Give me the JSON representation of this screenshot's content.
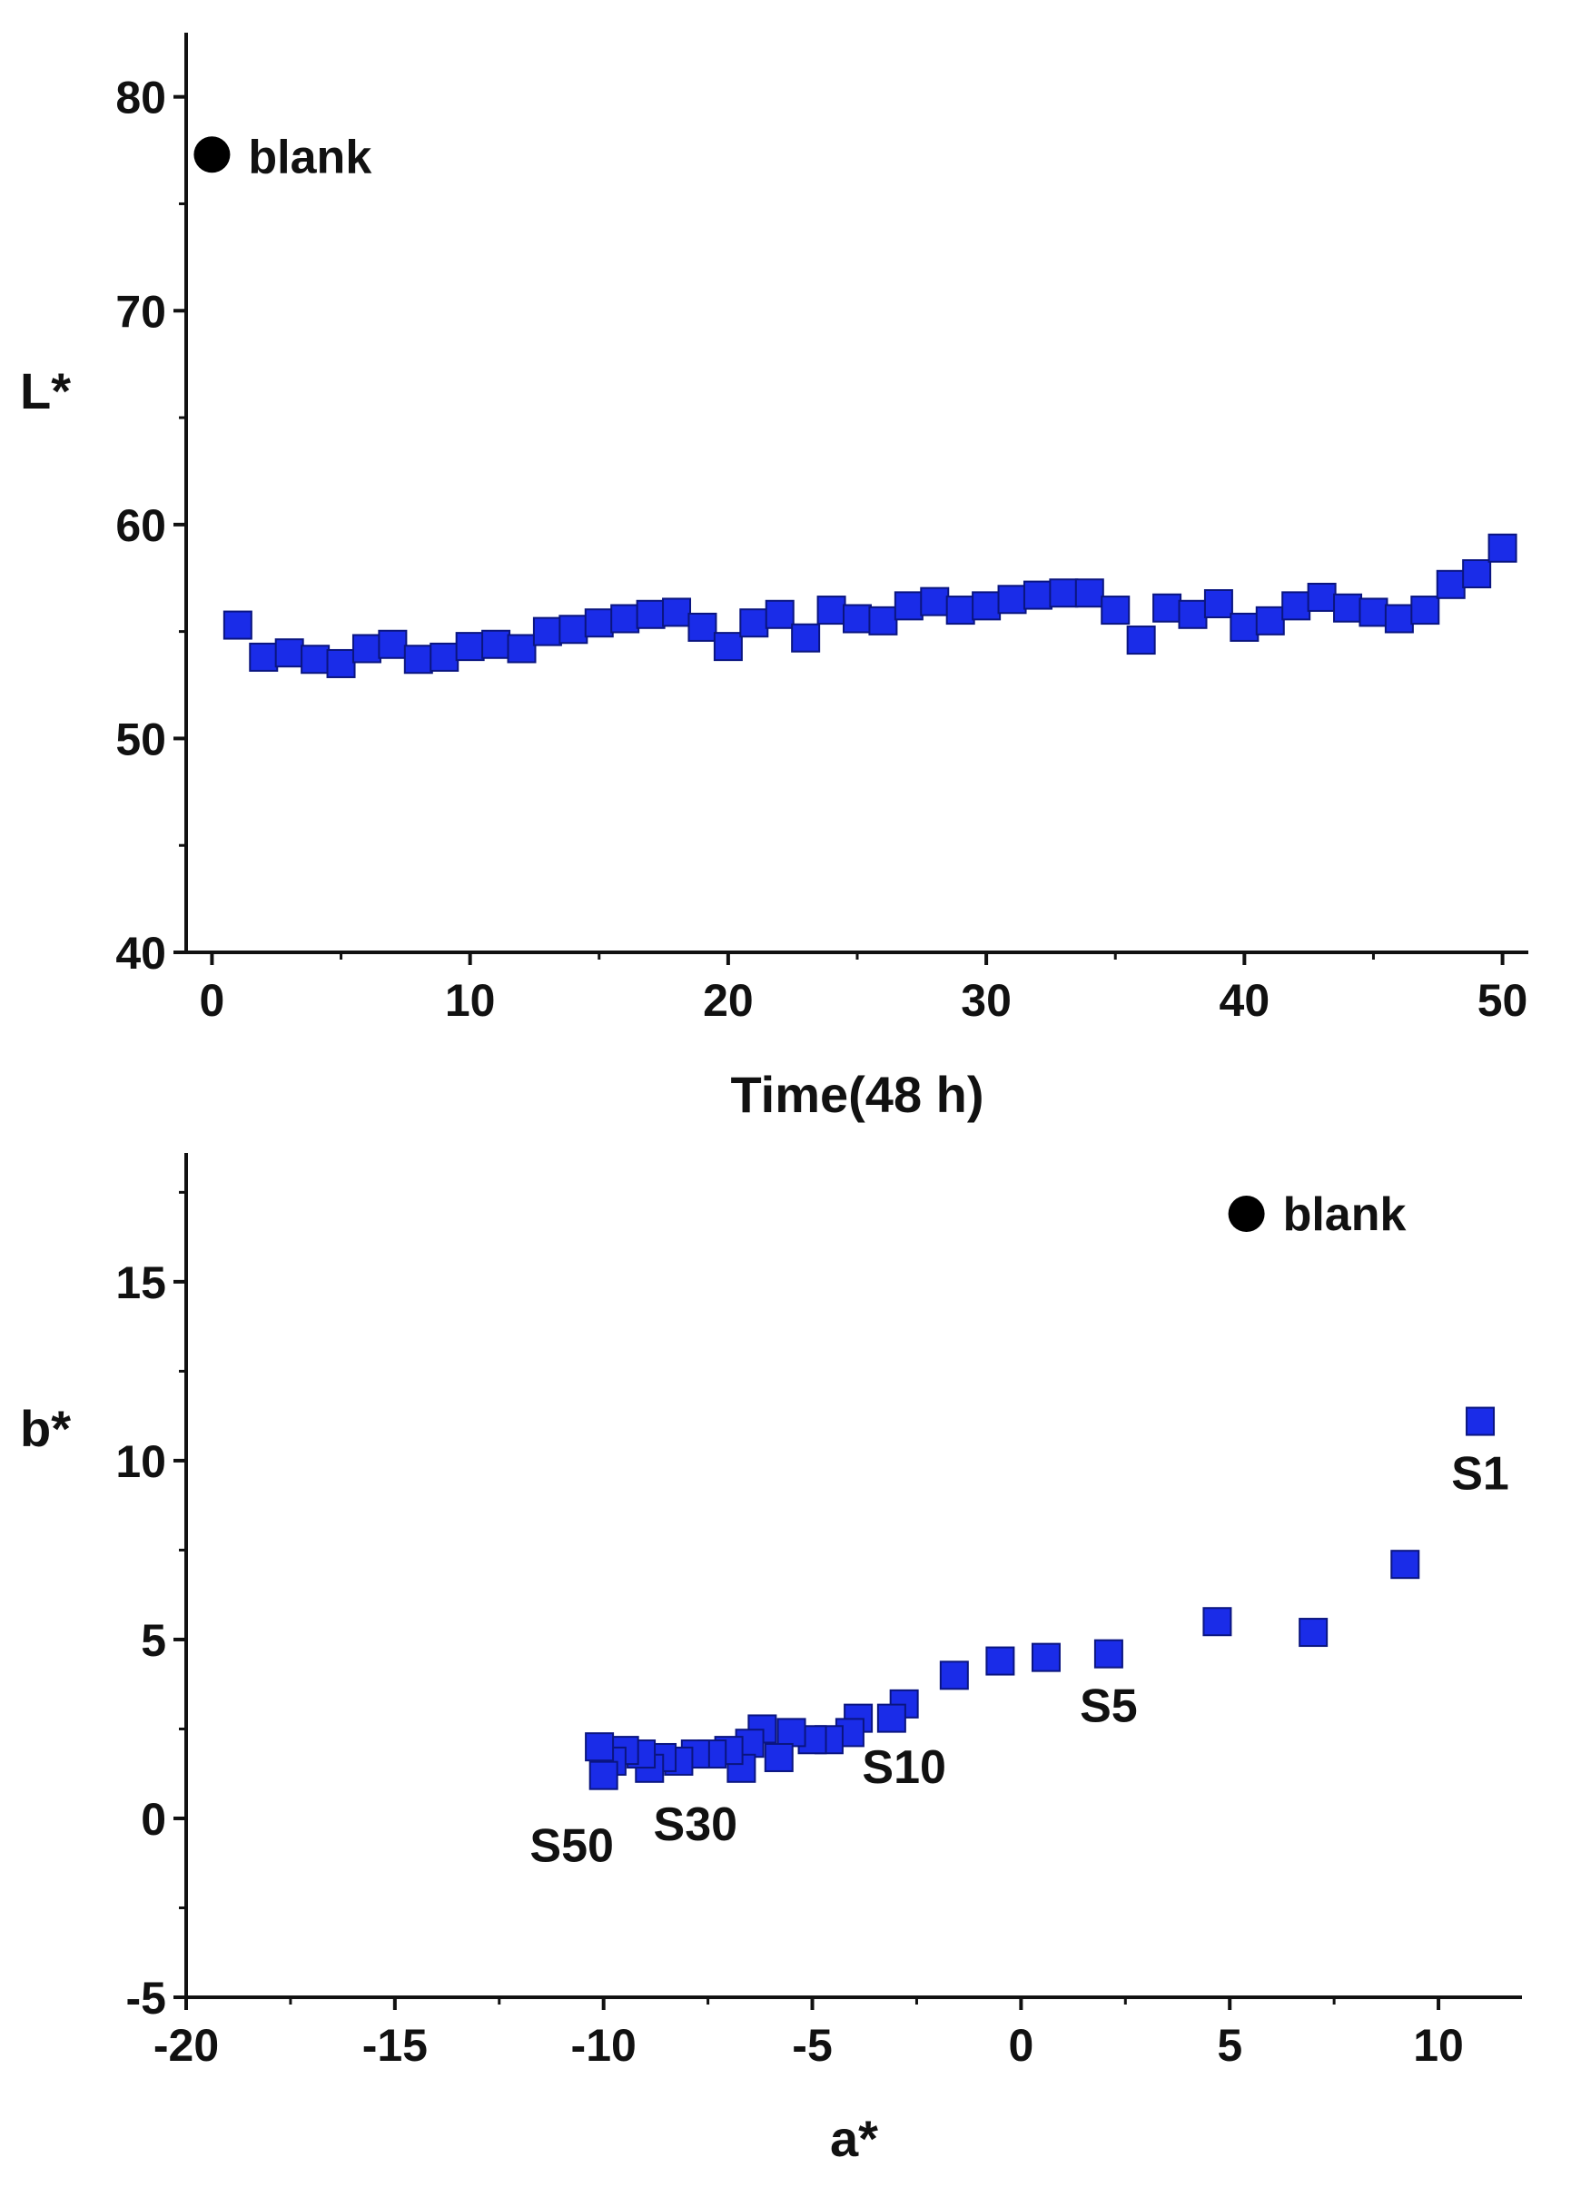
{
  "chart_data": [
    {
      "type": "scatter",
      "title": "",
      "xlabel": "Time(48 h)",
      "ylabel": "L*",
      "xlim": [
        -1,
        51
      ],
      "ylim": [
        40,
        83
      ],
      "xticks": [
        0,
        10,
        20,
        30,
        40,
        50
      ],
      "yticks": [
        40,
        50,
        60,
        70,
        80
      ],
      "x_minor_step": 5,
      "y_minor_step": 5,
      "grid": false,
      "series": [
        {
          "name": "samples",
          "marker": "square",
          "color": "#1a2ce8",
          "points": [
            [
              1,
              55.3
            ],
            [
              2,
              53.8
            ],
            [
              3,
              54.0
            ],
            [
              4,
              53.7
            ],
            [
              5,
              53.5
            ],
            [
              6,
              54.2
            ],
            [
              7,
              54.4
            ],
            [
              8,
              53.7
            ],
            [
              9,
              53.8
            ],
            [
              10,
              54.3
            ],
            [
              11,
              54.4
            ],
            [
              12,
              54.2
            ],
            [
              13,
              55.0
            ],
            [
              14,
              55.1
            ],
            [
              15,
              55.4
            ],
            [
              16,
              55.6
            ],
            [
              17,
              55.8
            ],
            [
              18,
              55.9
            ],
            [
              19,
              55.2
            ],
            [
              20,
              54.3
            ],
            [
              21,
              55.4
            ],
            [
              22,
              55.8
            ],
            [
              23,
              54.7
            ],
            [
              24,
              56.0
            ],
            [
              25,
              55.6
            ],
            [
              26,
              55.5
            ],
            [
              27,
              56.2
            ],
            [
              28,
              56.4
            ],
            [
              29,
              56.0
            ],
            [
              30,
              56.2
            ],
            [
              31,
              56.5
            ],
            [
              32,
              56.7
            ],
            [
              33,
              56.8
            ],
            [
              34,
              56.8
            ],
            [
              35,
              56.0
            ],
            [
              36,
              54.6
            ],
            [
              37,
              56.1
            ],
            [
              38,
              55.8
            ],
            [
              39,
              56.3
            ],
            [
              40,
              55.2
            ],
            [
              41,
              55.5
            ],
            [
              42,
              56.2
            ],
            [
              43,
              56.6
            ],
            [
              44,
              56.1
            ],
            [
              45,
              55.9
            ],
            [
              46,
              55.6
            ],
            [
              47,
              56.0
            ],
            [
              48,
              57.2
            ],
            [
              49,
              57.7
            ],
            [
              50,
              58.9
            ]
          ]
        },
        {
          "name": "blank",
          "marker": "circle",
          "color": "#000000",
          "points": [
            [
              0,
              77.3
            ]
          ]
        }
      ],
      "annotations": [
        {
          "text": "blank",
          "x": 0,
          "y": 77.3
        }
      ]
    },
    {
      "type": "scatter",
      "title": "",
      "xlabel": "a*",
      "ylabel": "b*",
      "xlim": [
        -20,
        12
      ],
      "ylim": [
        -5,
        18.6
      ],
      "xticks": [
        -20,
        -15,
        -10,
        -5,
        0,
        5,
        10
      ],
      "yticks": [
        -5,
        0,
        5,
        10,
        15
      ],
      "x_minor_step": 2.5,
      "y_minor_step": 2.5,
      "grid": false,
      "series": [
        {
          "name": "samples",
          "marker": "square",
          "color": "#1a2ce8",
          "points": [
            [
              11.0,
              11.1
            ],
            [
              9.2,
              7.1
            ],
            [
              7.0,
              5.2
            ],
            [
              4.7,
              5.5
            ],
            [
              2.1,
              4.6
            ],
            [
              0.6,
              4.5
            ],
            [
              -0.5,
              4.4
            ],
            [
              -1.6,
              4.0
            ],
            [
              -2.8,
              3.2
            ],
            [
              -3.1,
              2.8
            ],
            [
              -3.9,
              2.8
            ],
            [
              -4.1,
              2.4
            ],
            [
              -4.6,
              2.2
            ],
            [
              -5.0,
              2.2
            ],
            [
              -5.5,
              2.4
            ],
            [
              -5.8,
              1.7
            ],
            [
              -6.2,
              2.5
            ],
            [
              -6.5,
              2.1
            ],
            [
              -6.7,
              1.4
            ],
            [
              -7.0,
              1.9
            ],
            [
              -7.4,
              1.8
            ],
            [
              -7.8,
              1.8
            ],
            [
              -8.2,
              1.6
            ],
            [
              -8.6,
              1.7
            ],
            [
              -8.9,
              1.4
            ],
            [
              -9.1,
              1.8
            ],
            [
              -9.5,
              1.9
            ],
            [
              -9.8,
              1.6
            ],
            [
              -10.0,
              1.2
            ],
            [
              -10.1,
              2.0
            ]
          ]
        },
        {
          "name": "blank",
          "marker": "circle",
          "color": "#000000",
          "points": [
            [
              5.4,
              16.9
            ]
          ]
        }
      ],
      "annotations": [
        {
          "text": "blank",
          "x": 5.4,
          "y": 16.9
        },
        {
          "text": "S1",
          "x": 11.0,
          "y": 11.1
        },
        {
          "text": "S5",
          "x": 2.1,
          "y": 4.6
        },
        {
          "text": "S10",
          "x": -2.8,
          "y": 3.2
        },
        {
          "text": "S30",
          "x": -7.8,
          "y": 1.8
        },
        {
          "text": "S50",
          "x": -10.0,
          "y": 1.2
        }
      ]
    }
  ]
}
